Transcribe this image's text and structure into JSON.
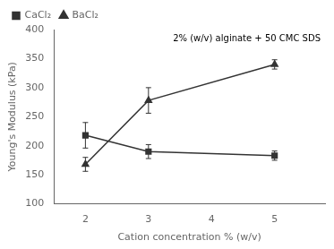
{
  "chart_data": {
    "type": "line",
    "xlabel": "Cation concentration % (w/v)",
    "ylabel": "Young's Modulus (kPa)",
    "annotation": "2% (w/v) alginate + 50 CMC SDS",
    "x": [
      2,
      3,
      5
    ],
    "series": [
      {
        "name": "CaCl₂",
        "color": "#333333",
        "marker": "square",
        "values": [
          218,
          190,
          183
        ],
        "yerr": [
          22,
          12,
          8
        ]
      },
      {
        "name": "BaCl₂",
        "color": "#333333",
        "marker": "triangle",
        "values": [
          168,
          278,
          340
        ],
        "yerr": [
          12,
          22,
          8
        ]
      }
    ],
    "xlim": [
      1.5,
      5.8
    ],
    "xticks": [
      2,
      3,
      4,
      5
    ],
    "ylim": [
      100,
      400
    ],
    "yticks": [
      100,
      150,
      200,
      250,
      300,
      350,
      400
    ],
    "grid": false,
    "legend": "upper left"
  }
}
